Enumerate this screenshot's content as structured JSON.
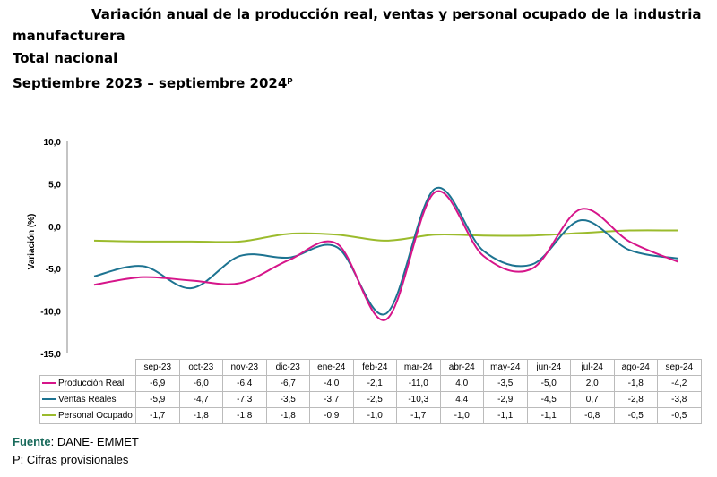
{
  "title": {
    "line1": "Variación anual de la producción real, ventas y personal ocupado de la industria",
    "line2": "manufacturera",
    "line3": "Total nacional",
    "line4": "Septiembre 2023 – septiembre 2024",
    "line4_sup": "p"
  },
  "chart_data": {
    "type": "line",
    "ylabel": "Variación (%)",
    "ylim": [
      -15,
      10
    ],
    "yticks": [
      "10,0",
      "5,0",
      "0,0",
      "-5,0",
      "-10,0",
      "-15,0"
    ],
    "yticks_values": [
      10,
      5,
      0,
      -5,
      -10,
      -15
    ],
    "categories": [
      "sep-23",
      "oct-23",
      "nov-23",
      "dic-23",
      "ene-24",
      "feb-24",
      "mar-24",
      "abr-24",
      "may-24",
      "jun-24",
      "jul-24",
      "ago-24",
      "sep-24"
    ],
    "series": [
      {
        "name": "Producción Real",
        "color": "#d6158a",
        "values": [
          -6.9,
          -6.0,
          -6.4,
          -6.7,
          -4.0,
          -2.1,
          -11.0,
          4.0,
          -3.5,
          -5.0,
          2.0,
          -1.8,
          -4.2
        ],
        "labels": [
          "-6,9",
          "-6,0",
          "-6,4",
          "-6,7",
          "-4,0",
          "-2,1",
          "-11,0",
          "4,0",
          "-3,5",
          "-5,0",
          "2,0",
          "-1,8",
          "-4,2"
        ]
      },
      {
        "name": "Ventas Reales",
        "color": "#1d7391",
        "values": [
          -5.9,
          -4.7,
          -7.3,
          -3.5,
          -3.7,
          -2.5,
          -10.3,
          4.4,
          -2.9,
          -4.5,
          0.7,
          -2.8,
          -3.8
        ],
        "labels": [
          "-5,9",
          "-4,7",
          "-7,3",
          "-3,5",
          "-3,7",
          "-2,5",
          "-10,3",
          "4,4",
          "-2,9",
          "-4,5",
          "0,7",
          "-2,8",
          "-3,8"
        ]
      },
      {
        "name": "Personal Ocupado",
        "color": "#9bbb2c",
        "values": [
          -1.7,
          -1.8,
          -1.8,
          -1.8,
          -0.9,
          -1.0,
          -1.7,
          -1.0,
          -1.1,
          -1.1,
          -0.8,
          -0.5,
          -0.5
        ],
        "labels": [
          "-1,7",
          "-1,8",
          "-1,8",
          "-1,8",
          "-0,9",
          "-1,0",
          "-1,7",
          "-1,0",
          "-1,1",
          "-1,1",
          "-0,8",
          "-0,5",
          "-0,5"
        ]
      }
    ]
  },
  "footer": {
    "source_label": "Fuente",
    "source_text": ": DANE- EMMET",
    "note": "P: Cifras provisionales"
  }
}
